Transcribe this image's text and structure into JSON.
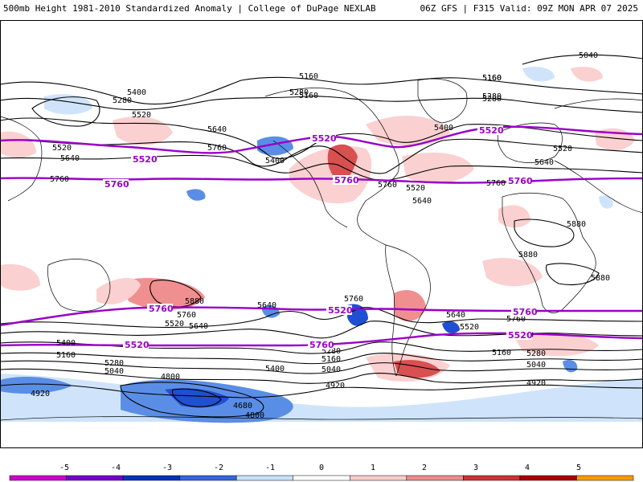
{
  "header": {
    "left": "500mb Height 1981-2010 Standardized Anomaly | College of DuPage NEXLAB",
    "right": "06Z GFS | F315 Valid: 09Z MON APR 07 2025"
  },
  "colors": {
    "positive_1": "#fbd0d0",
    "positive_2": "#f08f8f",
    "positive_3": "#d85050",
    "negative_1": "#cfe4fa",
    "negative_2": "#5a8ee6",
    "negative_3": "#1f4fd2",
    "highlight_contour": "#9a00c8",
    "black_contour": "#000000"
  },
  "contour_labels": [
    {
      "text": "5160"
    },
    {
      "text": "5280"
    },
    {
      "text": "5400"
    },
    {
      "text": "5520"
    },
    {
      "text": "5640"
    },
    {
      "text": "5760"
    },
    {
      "text": "5160"
    },
    {
      "text": "5280"
    },
    {
      "text": "5520"
    },
    {
      "text": "5640"
    },
    {
      "text": "5760"
    },
    {
      "text": "5400"
    },
    {
      "text": "5160"
    },
    {
      "text": "5280"
    },
    {
      "text": "5400"
    },
    {
      "text": "5520"
    },
    {
      "text": "5640"
    },
    {
      "text": "5760"
    },
    {
      "text": "5040"
    },
    {
      "text": "5160"
    },
    {
      "text": "5280"
    },
    {
      "text": "5520"
    },
    {
      "text": "5640"
    },
    {
      "text": "5760"
    },
    {
      "text": "5880"
    },
    {
      "text": "5880"
    },
    {
      "text": "5880"
    },
    {
      "text": "5880"
    },
    {
      "text": "5760"
    },
    {
      "text": "5640"
    },
    {
      "text": "5520"
    },
    {
      "text": "5400"
    },
    {
      "text": "5160"
    },
    {
      "text": "5280"
    },
    {
      "text": "5040"
    },
    {
      "text": "5640"
    },
    {
      "text": "5760"
    },
    {
      "text": "5400"
    },
    {
      "text": "5280"
    },
    {
      "text": "5160"
    },
    {
      "text": "5040"
    },
    {
      "text": "4920"
    },
    {
      "text": "4800"
    },
    {
      "text": "4680"
    },
    {
      "text": "4800"
    },
    {
      "text": "5640"
    },
    {
      "text": "5520"
    },
    {
      "text": "5760"
    },
    {
      "text": "5400"
    },
    {
      "text": "5280"
    },
    {
      "text": "5160"
    },
    {
      "text": "5040"
    },
    {
      "text": "4920"
    },
    {
      "text": "4920"
    }
  ],
  "highlight_labels": [
    {
      "text": "5520"
    },
    {
      "text": "5760"
    },
    {
      "text": "5520"
    },
    {
      "text": "5760"
    },
    {
      "text": "5520"
    },
    {
      "text": "5760"
    },
    {
      "text": "5760"
    },
    {
      "text": "5520"
    },
    {
      "text": "5760"
    },
    {
      "text": "5520"
    },
    {
      "text": "5760"
    },
    {
      "text": "5520"
    }
  ],
  "colorbar": {
    "ticks": [
      "-5",
      "-4",
      "-3",
      "-2",
      "-1",
      "0",
      "1",
      "2",
      "3",
      "4",
      "5"
    ],
    "colors": [
      "#cc00cc",
      "#7700cc",
      "#0033bb",
      "#3366dd",
      "#c9e0fb",
      "#ffffff",
      "#fbcccc",
      "#f08a8a",
      "#cc3333",
      "#aa0000",
      "#ff9900"
    ]
  }
}
